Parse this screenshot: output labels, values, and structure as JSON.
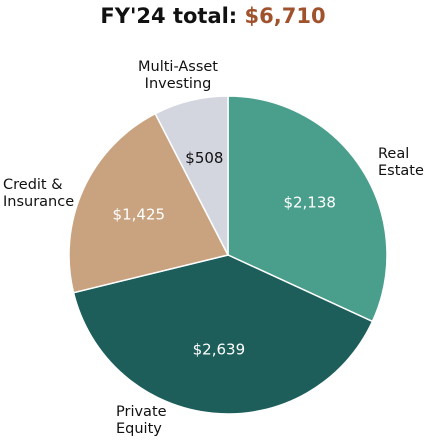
{
  "chart_data": {
    "type": "pie",
    "title_prefix": "FY'24 total: ",
    "title_total": "$6,710",
    "slices": [
      {
        "name": "Real Estate",
        "label_lines": [
          "Real",
          "Estate"
        ],
        "value": 2138,
        "value_label": "$2,138",
        "color": "#4a9f8c",
        "value_color": "#ffffff"
      },
      {
        "name": "Private Equity",
        "label_lines": [
          "Private",
          "Equity"
        ],
        "value": 2639,
        "value_label": "$2,639",
        "color": "#1d5e5b",
        "value_color": "#ffffff"
      },
      {
        "name": "Credit & Insurance",
        "label_lines": [
          "Credit &",
          "Insurance"
        ],
        "value": 1425,
        "value_label": "$1,425",
        "color": "#c9a37f",
        "value_color": "#ffffff"
      },
      {
        "name": "Multi-Asset Investing",
        "label_lines": [
          "Multi-Asset",
          "Investing"
        ],
        "value": 508,
        "value_label": "$508",
        "color": "#d3d6df",
        "value_color": "#111111"
      }
    ],
    "colors": {
      "title": "#111111",
      "title_total": "#a0522d",
      "border": "#ffffff"
    }
  }
}
